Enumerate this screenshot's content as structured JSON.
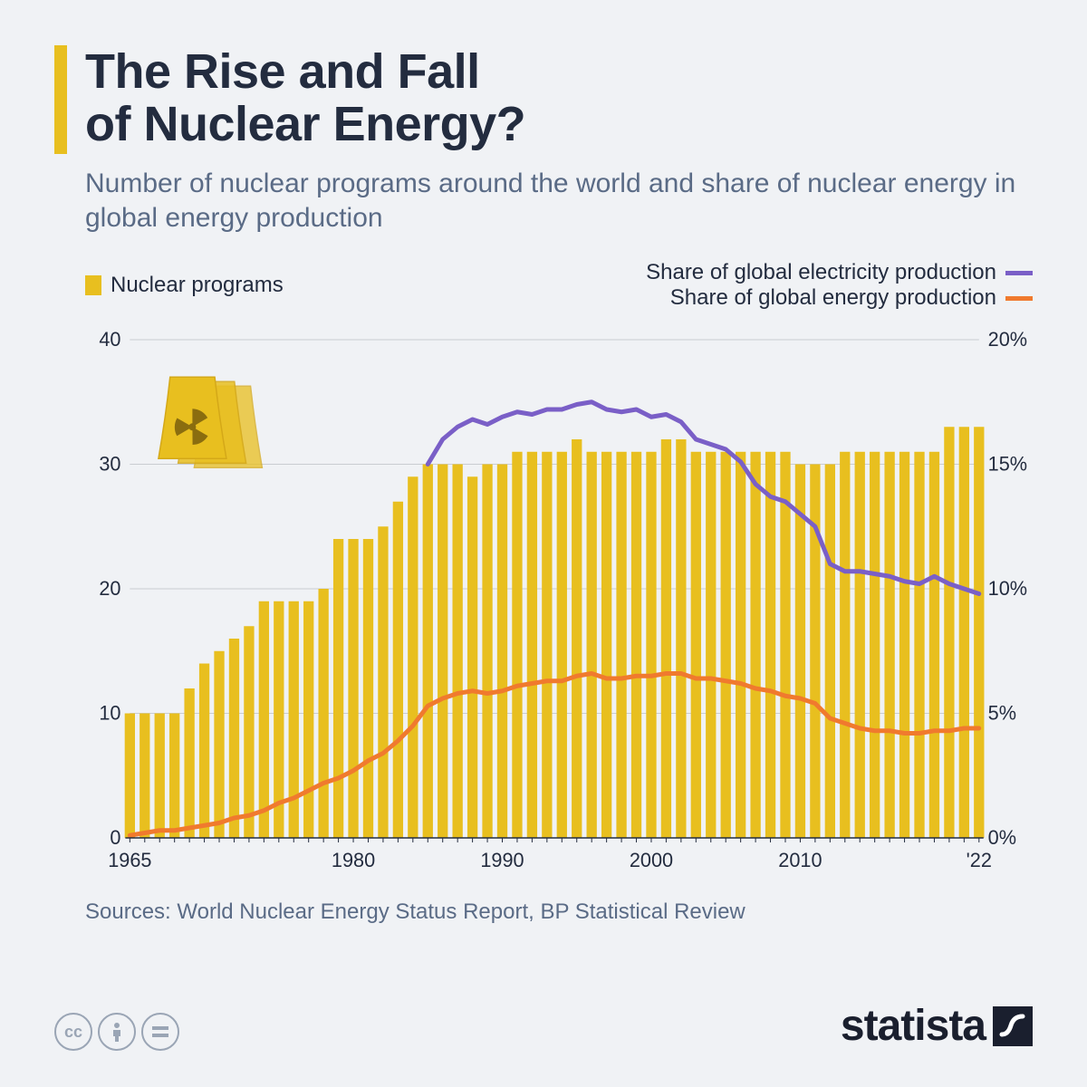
{
  "title_line1": "The Rise and Fall",
  "title_line2": "of Nuclear Energy?",
  "subtitle": "Number of nuclear programs around the world and share of nuclear energy in global energy production",
  "legend": {
    "bars": "Nuclear programs",
    "line1": "Share of global electricity production",
    "line2": "Share of global energy production"
  },
  "sources": "Sources: World Nuclear Energy Status Report, BP Statistical Review",
  "brand": "statista",
  "chart": {
    "background": "#f0f2f5",
    "bar_color": "#e8bf1f",
    "line1_color": "#7a5fc7",
    "line2_color": "#f07a2e",
    "grid_color": "#c9ccd1",
    "axis_text_color": "#232c3f",
    "left_axis": {
      "min": 0,
      "max": 40,
      "ticks": [
        0,
        10,
        20,
        30,
        40
      ]
    },
    "right_axis": {
      "min": 0,
      "max": 20,
      "ticks": [
        0,
        5,
        10,
        15,
        20
      ],
      "suffix": "%"
    },
    "x_ticks": [
      "1965",
      "1980",
      "1990",
      "2000",
      "2010",
      "'22"
    ],
    "x_tick_years": [
      1965,
      1980,
      1990,
      2000,
      2010,
      2022
    ],
    "years_start": 1965,
    "years_end": 2022,
    "bars": [
      10,
      10,
      10,
      10,
      12,
      14,
      15,
      16,
      17,
      19,
      19,
      19,
      19,
      20,
      24,
      24,
      24,
      25,
      27,
      29,
      30,
      30,
      30,
      29,
      30,
      30,
      31,
      31,
      31,
      31,
      32,
      31,
      31,
      31,
      31,
      31,
      32,
      32,
      31,
      31,
      31,
      31,
      31,
      31,
      31,
      30,
      30,
      30,
      31,
      31,
      31,
      31,
      31,
      31,
      31,
      33,
      33,
      33
    ],
    "line2_values": [
      0.1,
      0.2,
      0.3,
      0.3,
      0.4,
      0.5,
      0.6,
      0.8,
      0.9,
      1.1,
      1.4,
      1.6,
      1.9,
      2.2,
      2.4,
      2.7,
      3.1,
      3.4,
      3.9,
      4.5,
      5.3,
      5.6,
      5.8,
      5.9,
      5.8,
      5.9,
      6.1,
      6.2,
      6.3,
      6.3,
      6.5,
      6.6,
      6.4,
      6.4,
      6.5,
      6.5,
      6.6,
      6.6,
      6.4,
      6.4,
      6.3,
      6.2,
      6.0,
      5.9,
      5.7,
      5.6,
      5.4,
      4.8,
      4.6,
      4.4,
      4.3,
      4.3,
      4.2,
      4.2,
      4.3,
      4.3,
      4.4,
      4.4
    ],
    "line1_start_year": 1985,
    "line1_values": [
      15.0,
      16.0,
      16.5,
      16.8,
      16.6,
      16.9,
      17.1,
      17.0,
      17.2,
      17.2,
      17.4,
      17.5,
      17.2,
      17.1,
      17.2,
      16.9,
      17.0,
      16.7,
      16.0,
      15.8,
      15.6,
      15.1,
      14.2,
      13.7,
      13.5,
      13.0,
      12.5,
      11.0,
      10.7,
      10.7,
      10.6,
      10.5,
      10.3,
      10.2,
      10.5,
      10.2,
      10.0,
      9.8
    ],
    "line_width": 5
  }
}
